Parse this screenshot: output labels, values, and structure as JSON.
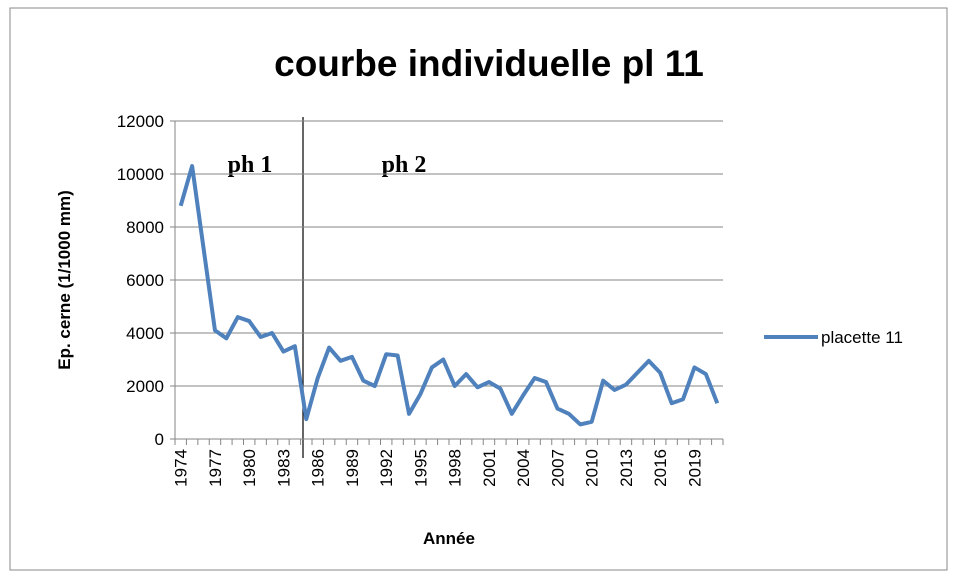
{
  "chart_data": {
    "type": "line",
    "title": "courbe individuelle pl  11",
    "y_label": "Ep. cerne (1/1000 mm)",
    "x_label": "Année",
    "annotations": [
      "ph 1",
      "ph 2"
    ],
    "categories": [
      "1974",
      null,
      null,
      "1977",
      null,
      null,
      "1980",
      null,
      null,
      "1983",
      null,
      null,
      "1986",
      null,
      null,
      "1989",
      null,
      null,
      "1992",
      null,
      null,
      "1995",
      null,
      null,
      "1998",
      null,
      null,
      "2001",
      null,
      null,
      "2004",
      null,
      null,
      "2007",
      null,
      null,
      "2010",
      null,
      null,
      "2013",
      null,
      null,
      "2016",
      null,
      null,
      "2019",
      null,
      null
    ],
    "series": [
      {
        "name": "placette 11",
        "color": "#4f81bd",
        "values": [
          8800,
          10300,
          7200,
          4100,
          3800,
          4600,
          4450,
          3850,
          4000,
          3300,
          3500,
          750,
          2300,
          3450,
          2950,
          3100,
          2200,
          2000,
          3200,
          3150,
          950,
          1700,
          2700,
          3000,
          2000,
          2450,
          1950,
          2150,
          1900,
          950,
          1650,
          2300,
          2150,
          1150,
          950,
          550,
          650,
          2200,
          1850,
          2050,
          2500,
          2950,
          2500,
          1350,
          1500,
          2700,
          2450,
          1350
        ]
      }
    ],
    "ylim": [
      0,
      12000
    ],
    "yticks": [
      0,
      2000,
      4000,
      6000,
      8000,
      10000,
      12000
    ],
    "grid": true,
    "legend": "right"
  }
}
